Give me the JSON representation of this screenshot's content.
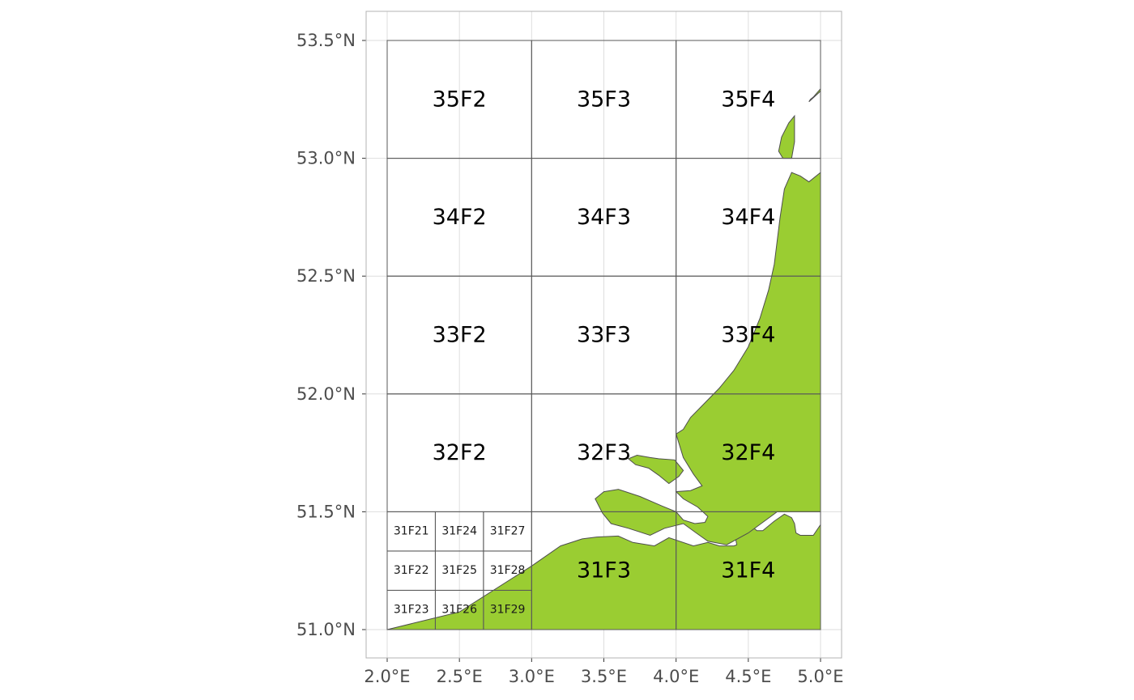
{
  "colors": {
    "land": "#9ACD32",
    "land_border": "#4d4d4d",
    "grid": "#dedede",
    "rect_border": "#595959",
    "panel_border": "#b3b3b3"
  },
  "axes": {
    "x": {
      "range": [
        2.0,
        5.0
      ],
      "ticks": [
        {
          "value": 2.0,
          "label": "2.0°E"
        },
        {
          "value": 2.5,
          "label": "2.5°E"
        },
        {
          "value": 3.0,
          "label": "3.0°E"
        },
        {
          "value": 3.5,
          "label": "3.5°E"
        },
        {
          "value": 4.0,
          "label": "4.0°E"
        },
        {
          "value": 4.5,
          "label": "4.5°E"
        },
        {
          "value": 5.0,
          "label": "5.0°E"
        }
      ]
    },
    "y": {
      "range": [
        51.0,
        53.5
      ],
      "ticks": [
        {
          "value": 51.0,
          "label": "51.0°N"
        },
        {
          "value": 51.5,
          "label": "51.5°N"
        },
        {
          "value": 52.0,
          "label": "52.0°N"
        },
        {
          "value": 52.5,
          "label": "52.5°N"
        },
        {
          "value": 53.0,
          "label": "53.0°N"
        },
        {
          "value": 53.5,
          "label": "53.5°N"
        }
      ]
    }
  },
  "rectangles": [
    {
      "label": "35F2",
      "lon": [
        2.0,
        3.0
      ],
      "lat": [
        53.0,
        53.5
      ]
    },
    {
      "label": "35F3",
      "lon": [
        3.0,
        4.0
      ],
      "lat": [
        53.0,
        53.5
      ]
    },
    {
      "label": "35F4",
      "lon": [
        4.0,
        5.0
      ],
      "lat": [
        53.0,
        53.5
      ]
    },
    {
      "label": "34F2",
      "lon": [
        2.0,
        3.0
      ],
      "lat": [
        52.5,
        53.0
      ]
    },
    {
      "label": "34F3",
      "lon": [
        3.0,
        4.0
      ],
      "lat": [
        52.5,
        53.0
      ]
    },
    {
      "label": "34F4",
      "lon": [
        4.0,
        5.0
      ],
      "lat": [
        52.5,
        53.0
      ]
    },
    {
      "label": "33F2",
      "lon": [
        2.0,
        3.0
      ],
      "lat": [
        52.0,
        52.5
      ]
    },
    {
      "label": "33F3",
      "lon": [
        3.0,
        4.0
      ],
      "lat": [
        52.0,
        52.5
      ]
    },
    {
      "label": "33F4",
      "lon": [
        4.0,
        5.0
      ],
      "lat": [
        52.0,
        52.5
      ]
    },
    {
      "label": "32F2",
      "lon": [
        2.0,
        3.0
      ],
      "lat": [
        51.5,
        52.0
      ]
    },
    {
      "label": "32F3",
      "lon": [
        3.0,
        4.0
      ],
      "lat": [
        51.5,
        52.0
      ]
    },
    {
      "label": "32F4",
      "lon": [
        4.0,
        5.0
      ],
      "lat": [
        51.5,
        52.0
      ]
    },
    {
      "label": "31F3",
      "lon": [
        3.0,
        4.0
      ],
      "lat": [
        51.0,
        51.5
      ]
    },
    {
      "label": "31F4",
      "lon": [
        4.0,
        5.0
      ],
      "lat": [
        51.0,
        51.5
      ]
    }
  ],
  "subrectangles": [
    {
      "label": "31F21",
      "lon": [
        2.0,
        2.3333
      ],
      "lat": [
        51.3333,
        51.5
      ]
    },
    {
      "label": "31F24",
      "lon": [
        2.3333,
        2.6667
      ],
      "lat": [
        51.3333,
        51.5
      ]
    },
    {
      "label": "31F27",
      "lon": [
        2.6667,
        3.0
      ],
      "lat": [
        51.3333,
        51.5
      ]
    },
    {
      "label": "31F22",
      "lon": [
        2.0,
        2.3333
      ],
      "lat": [
        51.1667,
        51.3333
      ]
    },
    {
      "label": "31F25",
      "lon": [
        2.3333,
        2.6667
      ],
      "lat": [
        51.1667,
        51.3333
      ]
    },
    {
      "label": "31F28",
      "lon": [
        2.6667,
        3.0
      ],
      "lat": [
        51.1667,
        51.3333
      ]
    },
    {
      "label": "31F23",
      "lon": [
        2.0,
        2.3333
      ],
      "lat": [
        51.0,
        51.1667
      ]
    },
    {
      "label": "31F26",
      "lon": [
        2.3333,
        2.6667
      ],
      "lat": [
        51.0,
        51.1667
      ]
    },
    {
      "label": "31F29",
      "lon": [
        2.6667,
        3.0
      ],
      "lat": [
        51.0,
        51.1667
      ]
    }
  ],
  "land": [
    {
      "name": "mainland",
      "coords": [
        [
          2.0,
          51.0
        ],
        [
          2.5,
          51.075
        ],
        [
          3.0,
          51.27
        ],
        [
          3.2,
          51.355
        ],
        [
          3.35,
          51.385
        ],
        [
          3.45,
          51.393
        ],
        [
          3.6,
          51.397
        ],
        [
          3.7,
          51.37
        ],
        [
          3.85,
          51.355
        ],
        [
          3.95,
          51.39
        ],
        [
          4.12,
          51.355
        ],
        [
          4.22,
          51.37
        ],
        [
          4.3,
          51.355
        ],
        [
          4.4,
          51.355
        ],
        [
          4.42,
          51.36
        ],
        [
          4.4,
          51.425
        ],
        [
          4.45,
          51.46
        ],
        [
          4.5,
          51.465
        ],
        [
          4.52,
          51.44
        ],
        [
          4.56,
          51.42
        ],
        [
          4.6,
          51.42
        ],
        [
          4.68,
          51.46
        ],
        [
          4.75,
          51.49
        ],
        [
          4.8,
          51.475
        ],
        [
          4.82,
          51.45
        ],
        [
          4.83,
          51.41
        ],
        [
          4.86,
          51.4
        ],
        [
          4.95,
          51.4
        ],
        [
          5.0,
          51.445
        ],
        [
          5.0,
          51.0
        ]
      ]
    },
    {
      "name": "holland-coast",
      "coords": [
        [
          5.0,
          52.94
        ],
        [
          4.92,
          52.9
        ],
        [
          4.86,
          52.925
        ],
        [
          4.8,
          52.94
        ],
        [
          4.75,
          52.87
        ],
        [
          4.72,
          52.75
        ],
        [
          4.68,
          52.55
        ],
        [
          4.64,
          52.44
        ],
        [
          4.58,
          52.32
        ],
        [
          4.5,
          52.2
        ],
        [
          4.4,
          52.1
        ],
        [
          4.3,
          52.025
        ],
        [
          4.18,
          51.95
        ],
        [
          4.1,
          51.9
        ],
        [
          4.05,
          51.85
        ],
        [
          4.0,
          51.83
        ],
        [
          4.05,
          51.73
        ],
        [
          4.12,
          51.66
        ],
        [
          4.18,
          51.61
        ],
        [
          4.1,
          51.59
        ],
        [
          4.0,
          51.585
        ],
        [
          4.05,
          51.555
        ],
        [
          4.15,
          51.52
        ],
        [
          4.22,
          51.48
        ],
        [
          4.2,
          51.455
        ],
        [
          4.13,
          51.45
        ],
        [
          4.05,
          51.465
        ],
        [
          4.0,
          51.5
        ],
        [
          3.9,
          51.525
        ],
        [
          3.75,
          51.565
        ],
        [
          3.6,
          51.595
        ],
        [
          3.5,
          51.585
        ],
        [
          3.44,
          51.555
        ],
        [
          3.49,
          51.495
        ],
        [
          3.55,
          51.45
        ],
        [
          3.67,
          51.43
        ],
        [
          3.82,
          51.4
        ],
        [
          3.92,
          51.43
        ],
        [
          4.05,
          51.45
        ],
        [
          4.14,
          51.41
        ],
        [
          4.22,
          51.375
        ],
        [
          4.35,
          51.36
        ],
        [
          4.5,
          51.41
        ],
        [
          4.7,
          51.5
        ],
        [
          4.85,
          51.5
        ],
        [
          5.0,
          51.5
        ]
      ]
    },
    {
      "name": "goeree-flakkee",
      "coords": [
        [
          3.88,
          51.725
        ],
        [
          3.82,
          51.73
        ],
        [
          3.73,
          51.74
        ],
        [
          3.67,
          51.725
        ],
        [
          3.72,
          51.7
        ],
        [
          3.81,
          51.685
        ],
        [
          3.88,
          51.655
        ],
        [
          3.95,
          51.62
        ],
        [
          4.02,
          51.65
        ],
        [
          4.05,
          51.675
        ],
        [
          3.99,
          51.72
        ]
      ]
    },
    {
      "name": "texel",
      "coords": [
        [
          4.82,
          53.18
        ],
        [
          4.78,
          53.15
        ],
        [
          4.73,
          53.09
        ],
        [
          4.71,
          53.03
        ],
        [
          4.74,
          53.0
        ],
        [
          4.8,
          53.0
        ],
        [
          4.82,
          53.07
        ]
      ]
    },
    {
      "name": "vlieland",
      "coords": [
        [
          4.92,
          53.24
        ],
        [
          5.0,
          53.285
        ],
        [
          5.0,
          53.295
        ],
        [
          4.95,
          53.26
        ],
        [
          4.93,
          53.25
        ]
      ]
    }
  ]
}
